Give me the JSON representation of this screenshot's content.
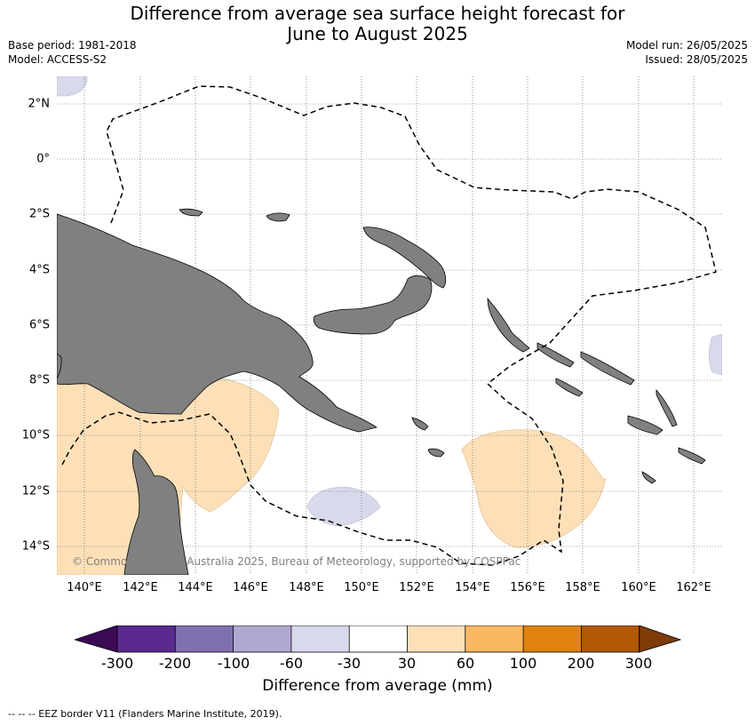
{
  "title_line1": "Difference from average sea surface height forecast for",
  "title_line2": "June to August 2025",
  "base_period": "Base period: 1981-2018",
  "model": "Model: ACCESS-S2",
  "model_run": "Model run: 26/05/2025",
  "issued": "Issued: 28/05/2025",
  "lat_labels": [
    "2°N",
    "0°",
    "2°S",
    "4°S",
    "6°S",
    "8°S",
    "10°S",
    "12°S",
    "14°S"
  ],
  "lon_labels": [
    "140°E",
    "142°E",
    "144°E",
    "146°E",
    "148°E",
    "150°E",
    "152°E",
    "154°E",
    "156°E",
    "158°E",
    "160°E",
    "162°E"
  ],
  "copyright": "© Commonwealth of Australia 2025, Bureau of Meteorology, supported by COSPPac",
  "colorbar": {
    "title": "Difference from average (mm)",
    "ticks": [
      "-300",
      "-200",
      "-100",
      "-60",
      "-30",
      "30",
      "60",
      "100",
      "200",
      "300"
    ],
    "colors": [
      "#3b0a55",
      "#5a2a8f",
      "#7f70ad",
      "#b0a8d1",
      "#d8d9ea",
      "#ffffff",
      "#fde0b7",
      "#fbb863",
      "#e0820f",
      "#b35806",
      "#7f3b08"
    ]
  },
  "land_color": "#808080",
  "eez_note": "--  --  -- EEZ border V11 (Flanders Marine Institute, 2019)."
}
